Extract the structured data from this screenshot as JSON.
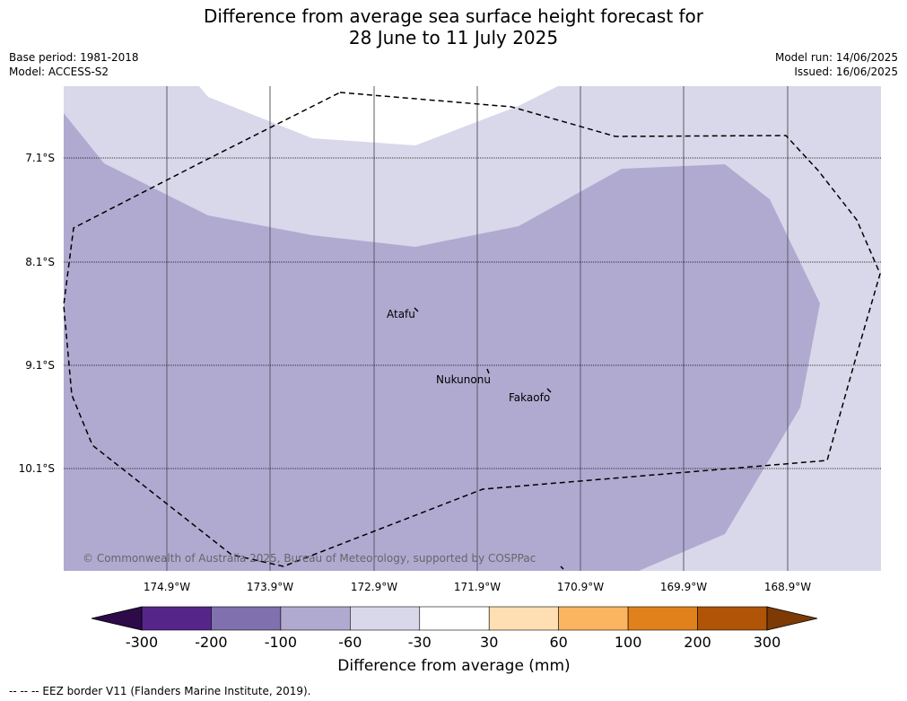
{
  "header": {
    "title_line1": "Difference from average sea surface height forecast for",
    "title_line2": "28 June to 11 July 2025",
    "base_period": "Base period: 1981-2018",
    "model": "Model: ACCESS-S2",
    "model_run": "Model run: 14/06/2025",
    "issued": "Issued: 16/06/2025"
  },
  "map": {
    "lat_labels": [
      "7.1°S",
      "8.1°S",
      "9.1°S",
      "10.1°S"
    ],
    "lon_labels": [
      "174.9°W",
      "173.9°W",
      "172.9°W",
      "171.9°W",
      "170.9°W",
      "169.9°W",
      "168.9°W"
    ],
    "places": [
      {
        "name": "Atafu"
      },
      {
        "name": "Nukunonu"
      },
      {
        "name": "Fakaofo"
      }
    ],
    "copyright": "© Commonwealth of Australia 2025, Bureau of Meteorology, supported by COSPPac"
  },
  "colorbar": {
    "title": "Difference from average (mm)",
    "ticks": [
      "-300",
      "-200",
      "-100",
      "-60",
      "-30",
      "30",
      "60",
      "100",
      "200",
      "300"
    ],
    "colors": [
      "#56258a",
      "#8070ad",
      "#b0aad1",
      "#d8d8ea",
      "#ffffff",
      "#fddfb3",
      "#fbb45f",
      "#e0811b",
      "#b05407"
    ],
    "under_color": "#2d0a48",
    "over_color": "#7d3a05"
  },
  "footer": {
    "legend_text": "--  --  -- EEZ border V11 (Flanders Marine Institute, 2019)."
  }
}
